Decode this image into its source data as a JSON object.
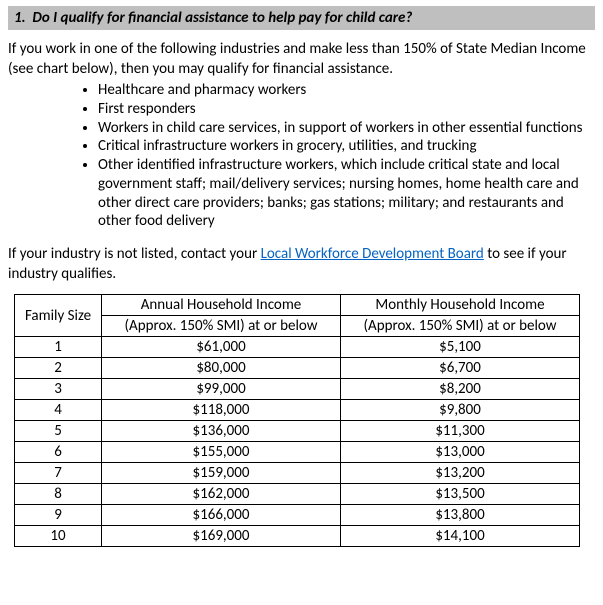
{
  "question": {
    "number": "1.",
    "text": "Do I qualify for financial assistance to help pay for child care?"
  },
  "intro": "If you work in one of the following industries and make less than 150% of State Median Income (see chart below), then you may qualify for financial assistance.",
  "industries": [
    "Healthcare and pharmacy workers",
    "First responders",
    "Workers in child care services, in support of workers in other essential functions",
    "Critical infrastructure workers in grocery, utilities, and trucking",
    "Other identified infrastructure workers, which include critical state and local government staff; mail/delivery services; nursing homes, home health care and other direct care providers; banks; gas stations; military; and restaurants and other food delivery"
  ],
  "note_before": "If your industry is not listed, contact your ",
  "link_text": "Local Workforce Development Board",
  "note_after": " to see if your industry qualifies.",
  "table": {
    "headers": {
      "family_size": "Family Size",
      "annual_l1": "Annual Household Income",
      "annual_l2": "(Approx. 150% SMI) at or below",
      "monthly_l1": "Monthly Household Income",
      "monthly_l2": "(Approx. 150% SMI) at or below"
    },
    "rows": [
      {
        "size": "1",
        "annual": "$61,000",
        "monthly": "$5,100"
      },
      {
        "size": "2",
        "annual": "$80,000",
        "monthly": "$6,700"
      },
      {
        "size": "3",
        "annual": "$99,000",
        "monthly": "$8,200"
      },
      {
        "size": "4",
        "annual": "$118,000",
        "monthly": "$9,800"
      },
      {
        "size": "5",
        "annual": "$136,000",
        "monthly": "$11,300"
      },
      {
        "size": "6",
        "annual": "$155,000",
        "monthly": "$13,000"
      },
      {
        "size": "7",
        "annual": "$159,000",
        "monthly": "$13,200"
      },
      {
        "size": "8",
        "annual": "$162,000",
        "monthly": "$13,500"
      },
      {
        "size": "9",
        "annual": "$166,000",
        "monthly": "$13,800"
      },
      {
        "size": "10",
        "annual": "$169,000",
        "monthly": "$14,100"
      }
    ]
  }
}
